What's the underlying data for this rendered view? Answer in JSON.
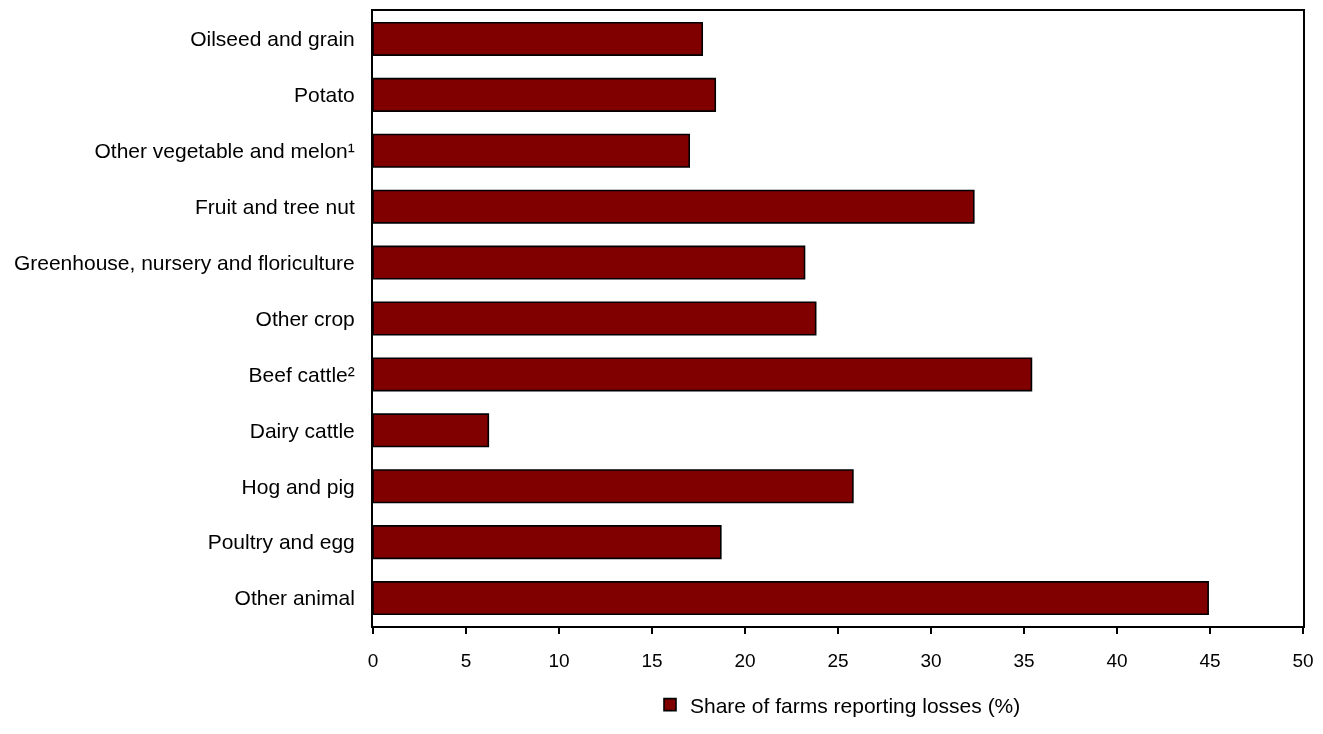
{
  "chart_data": {
    "type": "bar",
    "orientation": "horizontal",
    "categories": [
      "Oilseed and grain",
      "Potato",
      "Other vegetable and melon¹",
      "Fruit and tree nut",
      "Greenhouse, nursery and floriculture",
      "Other crop",
      "Beef cattle²",
      "Dairy cattle",
      "Hog and pig",
      "Poultry and egg",
      "Other animal"
    ],
    "series": [
      {
        "name": "Share of farms reporting losses (%)",
        "color": "#800000",
        "values": [
          17.7,
          18.4,
          17.0,
          32.3,
          23.2,
          23.8,
          35.4,
          6.2,
          25.8,
          18.7,
          44.9
        ]
      }
    ],
    "xlim": [
      0,
      50
    ],
    "xticks": [
      0,
      5,
      10,
      15,
      20,
      25,
      30,
      35,
      40,
      45,
      50
    ],
    "legend": "bottom"
  }
}
